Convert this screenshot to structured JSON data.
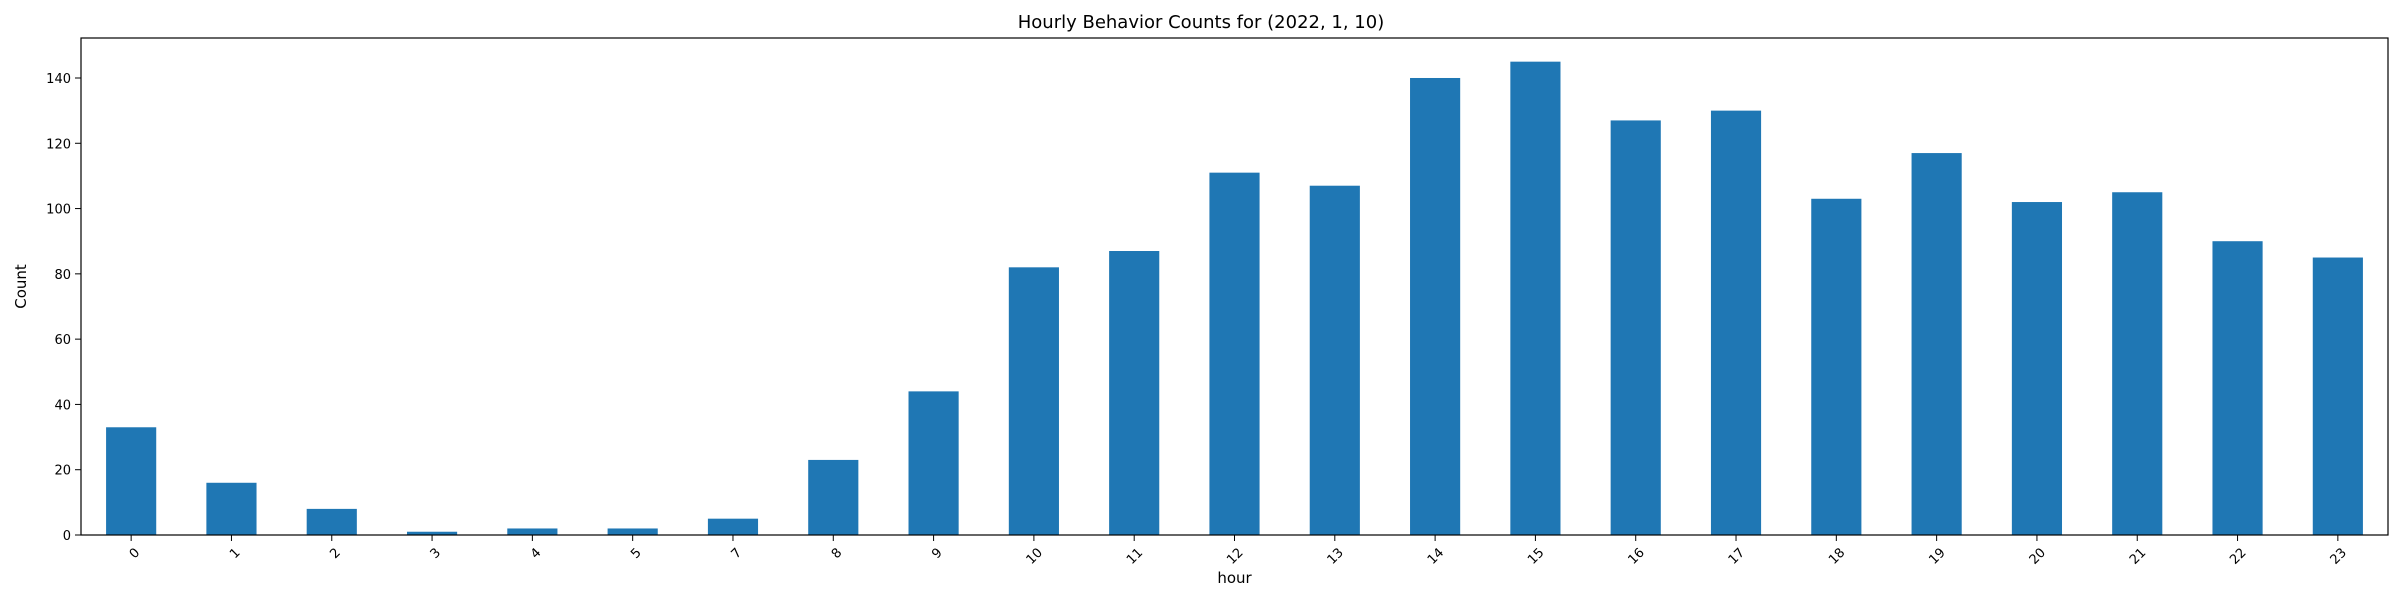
{
  "chart_data": {
    "type": "bar",
    "title": "Hourly Behavior Counts for (2022, 1, 10)",
    "xlabel": "hour",
    "ylabel": "Count",
    "categories": [
      "0",
      "1",
      "2",
      "3",
      "4",
      "5",
      "7",
      "8",
      "9",
      "10",
      "11",
      "12",
      "13",
      "14",
      "15",
      "16",
      "17",
      "18",
      "19",
      "20",
      "21",
      "22",
      "23"
    ],
    "values": [
      33,
      16,
      8,
      1,
      2,
      2,
      5,
      23,
      44,
      82,
      87,
      111,
      107,
      140,
      145,
      127,
      130,
      103,
      117,
      102,
      105,
      90,
      85
    ],
    "ylim": [
      0,
      152.25
    ],
    "yticks": [
      0,
      20,
      40,
      60,
      80,
      100,
      120,
      140
    ],
    "bar_color": "#1f77b4",
    "grid": false,
    "legend": "none"
  }
}
